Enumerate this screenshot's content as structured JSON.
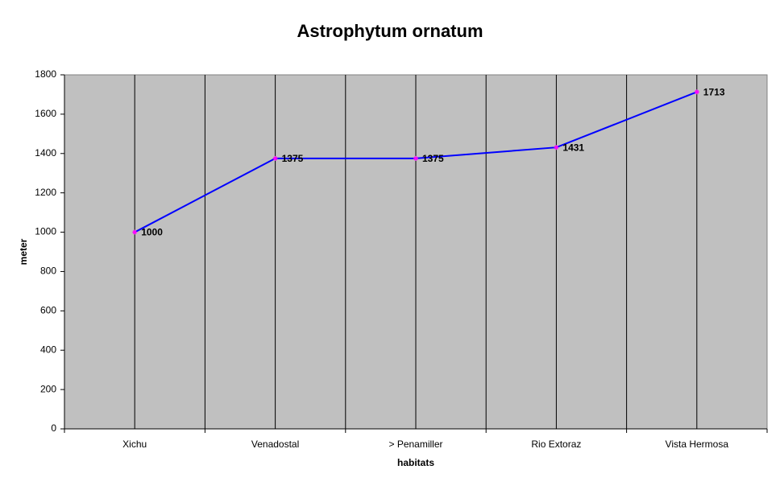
{
  "chart_data": {
    "type": "line",
    "title": "Astrophytum ornatum",
    "x_label": "habitats",
    "y_label": "meter",
    "categories": [
      "Xichu",
      "Venadostal",
      "> Penamiller",
      "Rio Extoraz",
      "Vista Hermosa"
    ],
    "values": [
      1000,
      1375,
      1375,
      1431,
      1713
    ],
    "color": "#0000ff",
    "marker_color": "#ff00ff",
    "ylim": [
      0,
      1800
    ],
    "yticks": [
      0,
      200,
      400,
      600,
      800,
      1000,
      1200,
      1400,
      1600,
      1800
    ],
    "grid": true,
    "plot_background": "#c0c0c0"
  }
}
